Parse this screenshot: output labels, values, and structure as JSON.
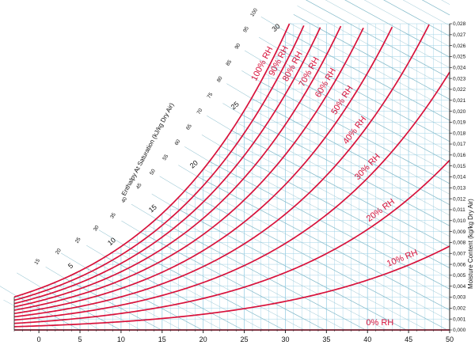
{
  "chart_data": {
    "type": "line",
    "title": "",
    "xlabel": "",
    "ylabel": "Moisture Content (kg/kg Dry Air)",
    "enthalpy_axis_label": "Enthalpy At Saturation (kJ/kg Dry Air)",
    "xlim": [
      -3,
      50
    ],
    "ylim": [
      0,
      0.028
    ],
    "x_ticks": [
      "0",
      "5",
      "10",
      "15",
      "20",
      "25",
      "30",
      "35",
      "40",
      "45",
      "50"
    ],
    "y_ticks": [
      "0,000",
      "0,001",
      "0,002",
      "0,003",
      "0,004",
      "0,005",
      "0,006",
      "0,007",
      "0,008",
      "0,009",
      "0,010",
      "0,011",
      "0,012",
      "0,013",
      "0,014",
      "0,015",
      "0,016",
      "0,017",
      "0,018",
      "0,019",
      "0,020",
      "0,021",
      "0,022",
      "0,023",
      "0,024",
      "0,025",
      "0,026",
      "0,027",
      "0,028"
    ],
    "enthalpy_ticks": [
      "15",
      "20",
      "25",
      "30",
      "35",
      "40",
      "45",
      "50",
      "55",
      "60",
      "65",
      "70",
      "75",
      "80",
      "85",
      "90",
      "95",
      "100"
    ],
    "wet_bulb_ticks": [
      "5",
      "10",
      "15",
      "20",
      "25",
      "30"
    ],
    "series": [
      {
        "name": "0% RH",
        "rh": 0
      },
      {
        "name": "10% RH",
        "rh": 10
      },
      {
        "name": "20% RH",
        "rh": 20
      },
      {
        "name": "30% RH",
        "rh": 30
      },
      {
        "name": "40% RH",
        "rh": 40
      },
      {
        "name": "50% RH",
        "rh": 50
      },
      {
        "name": "60% RH",
        "rh": 60
      },
      {
        "name": "70% RH",
        "rh": 70
      },
      {
        "name": "80% RH",
        "rh": 80
      },
      {
        "name": "90% RH",
        "rh": 90
      },
      {
        "name": "100% RH",
        "rh": 100
      }
    ],
    "grid": true,
    "colors": {
      "curve": "#d8123b",
      "grid": "#9fd2e6",
      "enthalpy_line": "#7fb8c8",
      "axis": "#222222"
    }
  }
}
